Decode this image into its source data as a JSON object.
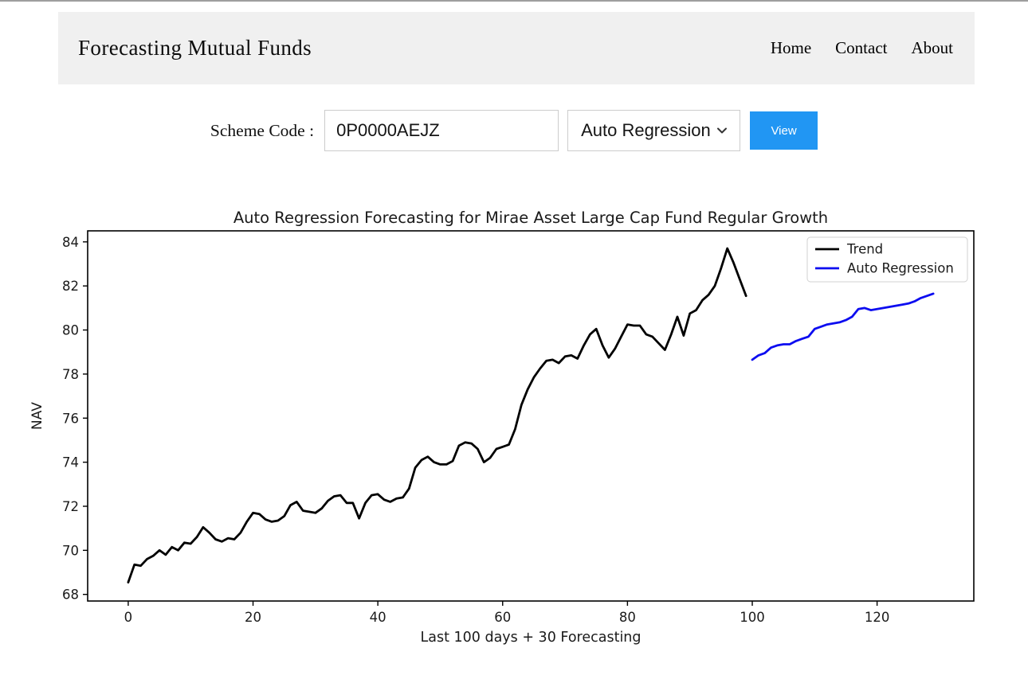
{
  "header": {
    "title": "Forecasting Mutual Funds",
    "nav": [
      "Home",
      "Contact",
      "About"
    ]
  },
  "form": {
    "label": "Scheme Code :",
    "scheme_code": "0P0000AEJZ",
    "model_selected": "Auto Regression",
    "view_label": "View"
  },
  "colors": {
    "accent_blue": "#2196F3",
    "header_bg": "#f0f0f0",
    "trend_line": "#000000",
    "forecast_line": "#0d0df0",
    "input_border": "#cccccc"
  },
  "chart_data": {
    "type": "line",
    "title": "Auto Regression Forecasting for Mirae Asset Large Cap Fund Regular Growth",
    "xlabel": "Last 100 days + 30 Forecasting",
    "ylabel": "NAV",
    "xlim": [
      -6.5,
      135.5
    ],
    "ylim": [
      67.7,
      84.5
    ],
    "x_ticks": [
      0,
      20,
      40,
      60,
      80,
      100,
      120
    ],
    "y_ticks": [
      68,
      70,
      72,
      74,
      76,
      78,
      80,
      82,
      84
    ],
    "grid": false,
    "legend_position": "upper right",
    "series": [
      {
        "name": "Trend",
        "color": "#000000",
        "x_start": 0,
        "values": [
          68.55,
          69.35,
          69.3,
          69.6,
          69.75,
          70.0,
          69.8,
          70.15,
          70.0,
          70.35,
          70.3,
          70.6,
          71.05,
          70.8,
          70.5,
          70.4,
          70.55,
          70.5,
          70.8,
          71.3,
          71.7,
          71.65,
          71.4,
          71.3,
          71.35,
          71.55,
          72.05,
          72.2,
          71.8,
          71.75,
          71.7,
          71.9,
          72.25,
          72.45,
          72.5,
          72.15,
          72.15,
          71.45,
          72.15,
          72.5,
          72.55,
          72.3,
          72.2,
          72.35,
          72.4,
          72.8,
          73.75,
          74.1,
          74.25,
          74.0,
          73.9,
          73.9,
          74.05,
          74.75,
          74.9,
          74.85,
          74.6,
          74.0,
          74.2,
          74.6,
          74.7,
          74.8,
          75.5,
          76.6,
          77.3,
          77.85,
          78.25,
          78.6,
          78.65,
          78.5,
          78.8,
          78.85,
          78.7,
          79.3,
          79.8,
          80.05,
          79.3,
          78.75,
          79.15,
          79.7,
          80.25,
          80.2,
          80.2,
          79.8,
          79.7,
          79.4,
          79.1,
          79.8,
          80.6,
          79.75,
          80.75,
          80.9,
          81.35,
          81.6,
          82.0,
          82.8,
          83.7,
          83.05,
          82.3,
          81.55
        ]
      },
      {
        "name": "Auto Regression",
        "color": "#0d0df0",
        "x_start": 100,
        "values": [
          78.65,
          78.85,
          78.95,
          79.2,
          79.3,
          79.35,
          79.35,
          79.5,
          79.6,
          79.7,
          80.05,
          80.15,
          80.25,
          80.3,
          80.35,
          80.45,
          80.6,
          80.95,
          81.0,
          80.9,
          80.95,
          81.0,
          81.05,
          81.1,
          81.15,
          81.2,
          81.3,
          81.45,
          81.55,
          81.65
        ]
      }
    ]
  }
}
